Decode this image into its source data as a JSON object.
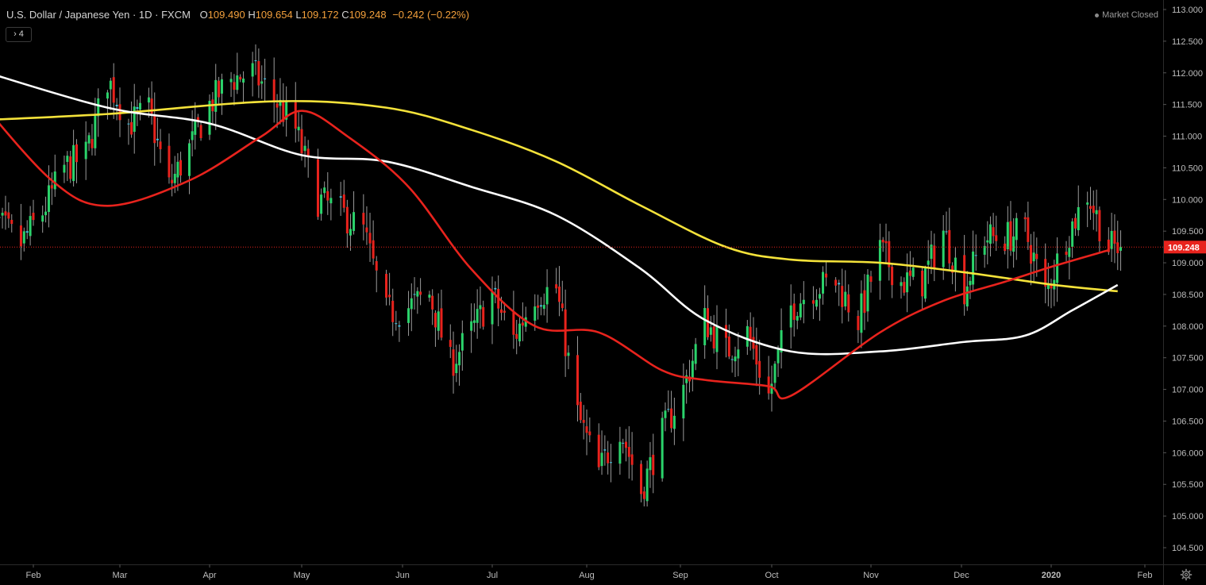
{
  "header": {
    "symbol": "U.S. Dollar / Japanese Yen · 1D · FXCM",
    "open_label": "O",
    "open": "109.490",
    "high_label": "H",
    "high": "109.654",
    "low_label": "L",
    "low": "109.172",
    "close_label": "C",
    "close": "109.248",
    "change": "−0.242 (−0.22%)",
    "collapse_label": "› 4",
    "market_status": "Market Closed"
  },
  "colors": {
    "background": "#000000",
    "up_candle": "#2bd36b",
    "down_candle": "#e8231d",
    "doji": "#3fc6e8",
    "ma_red": "#e8231d",
    "ma_white": "#ffffff",
    "ma_yellow": "#f4e23a",
    "price_line": "#e8231d",
    "accent": "#f3a03c"
  },
  "chart_data": {
    "type": "candlestick",
    "title": "U.S. Dollar / Japanese Yen · 1D · FXCM",
    "x_tick_labels": [
      "Feb",
      "Mar",
      "Apr",
      "May",
      "Jun",
      "Jul",
      "Aug",
      "Sep",
      "Oct",
      "Nov",
      "Dec",
      "2020",
      "Feb"
    ],
    "y_tick_labels": [
      "113.000",
      "112.500",
      "112.000",
      "111.500",
      "111.000",
      "110.500",
      "110.000",
      "109.500",
      "109.000",
      "108.500",
      "108.000",
      "107.500",
      "107.000",
      "106.500",
      "106.000",
      "105.500",
      "105.000",
      "104.500"
    ],
    "ylim": [
      104.5,
      113.0
    ],
    "last_price": "109.248",
    "series_anchors": {
      "close": [
        [
          "2019-01-21",
          109.6
        ],
        [
          "2019-01-28",
          109.3
        ],
        [
          "2019-02-04",
          109.8
        ],
        [
          "2019-02-11",
          110.5
        ],
        [
          "2019-02-18",
          110.7
        ],
        [
          "2019-02-25",
          111.9
        ],
        [
          "2019-03-04",
          111.2
        ],
        [
          "2019-03-11",
          111.4
        ],
        [
          "2019-03-18",
          110.2
        ],
        [
          "2019-03-25",
          110.8
        ],
        [
          "2019-04-01",
          111.5
        ],
        [
          "2019-04-08",
          111.9
        ],
        [
          "2019-04-15",
          112.0
        ],
        [
          "2019-04-22",
          111.6
        ],
        [
          "2019-04-29",
          111.1
        ],
        [
          "2019-05-06",
          110.0
        ],
        [
          "2019-05-13",
          109.8
        ],
        [
          "2019-05-20",
          109.5
        ],
        [
          "2019-05-27",
          108.2
        ],
        [
          "2019-06-03",
          108.3
        ],
        [
          "2019-06-10",
          108.5
        ],
        [
          "2019-06-17",
          107.4
        ],
        [
          "2019-06-24",
          107.9
        ],
        [
          "2019-07-01",
          108.5
        ],
        [
          "2019-07-08",
          107.8
        ],
        [
          "2019-07-15",
          108.5
        ],
        [
          "2019-07-22",
          108.6
        ],
        [
          "2019-07-29",
          106.6
        ],
        [
          "2019-08-05",
          105.7
        ],
        [
          "2019-08-12",
          106.4
        ],
        [
          "2019-08-19",
          105.4
        ],
        [
          "2019-08-26",
          106.3
        ],
        [
          "2019-09-02",
          107.0
        ],
        [
          "2019-09-09",
          108.1
        ],
        [
          "2019-09-16",
          107.6
        ],
        [
          "2019-09-23",
          107.9
        ],
        [
          "2019-09-30",
          106.9
        ],
        [
          "2019-10-07",
          108.3
        ],
        [
          "2019-10-14",
          108.6
        ],
        [
          "2019-10-21",
          108.7
        ],
        [
          "2019-10-28",
          108.1
        ],
        [
          "2019-11-04",
          109.2
        ],
        [
          "2019-11-11",
          108.7
        ],
        [
          "2019-11-18",
          108.7
        ],
        [
          "2019-11-25",
          109.5
        ],
        [
          "2019-12-02",
          108.6
        ],
        [
          "2019-12-09",
          109.4
        ],
        [
          "2019-12-16",
          109.4
        ],
        [
          "2019-12-23",
          109.5
        ],
        [
          "2019-12-30",
          108.5
        ],
        [
          "2020-01-06",
          109.4
        ],
        [
          "2020-01-13",
          110.1
        ],
        [
          "2020-01-20",
          109.25
        ]
      ],
      "ma_red": [
        [
          "2019-01-14",
          111.6
        ],
        [
          "2019-02-07",
          110.3
        ],
        [
          "2019-02-25",
          109.9
        ],
        [
          "2019-03-25",
          110.3
        ],
        [
          "2019-04-18",
          111.0
        ],
        [
          "2019-05-01",
          111.4
        ],
        [
          "2019-05-15",
          111.0
        ],
        [
          "2019-06-03",
          110.2
        ],
        [
          "2019-06-24",
          108.9
        ],
        [
          "2019-07-15",
          108.0
        ],
        [
          "2019-08-05",
          107.9
        ],
        [
          "2019-08-26",
          107.3
        ],
        [
          "2019-09-09",
          107.15
        ],
        [
          "2019-09-30",
          107.05
        ],
        [
          "2019-10-07",
          106.9
        ],
        [
          "2019-11-04",
          107.9
        ],
        [
          "2019-11-25",
          108.4
        ],
        [
          "2019-12-16",
          108.7
        ],
        [
          "2020-01-02",
          108.95
        ],
        [
          "2020-01-20",
          109.2
        ]
      ],
      "ma_white": [
        [
          "2019-01-14",
          112.05
        ],
        [
          "2019-02-25",
          111.45
        ],
        [
          "2019-04-01",
          111.2
        ],
        [
          "2019-05-01",
          110.7
        ],
        [
          "2019-05-27",
          110.6
        ],
        [
          "2019-06-24",
          110.2
        ],
        [
          "2019-07-22",
          109.75
        ],
        [
          "2019-08-19",
          108.9
        ],
        [
          "2019-09-09",
          108.1
        ],
        [
          "2019-10-07",
          107.6
        ],
        [
          "2019-11-04",
          107.6
        ],
        [
          "2019-12-02",
          107.75
        ],
        [
          "2019-12-23",
          107.85
        ],
        [
          "2020-01-08",
          108.25
        ],
        [
          "2020-01-23",
          108.65
        ]
      ],
      "ma_yellow": [
        [
          "2019-01-14",
          111.25
        ],
        [
          "2019-02-25",
          111.35
        ],
        [
          "2019-04-22",
          111.55
        ],
        [
          "2019-05-27",
          111.45
        ],
        [
          "2019-06-24",
          111.1
        ],
        [
          "2019-07-22",
          110.6
        ],
        [
          "2019-08-19",
          109.9
        ],
        [
          "2019-09-16",
          109.25
        ],
        [
          "2019-10-07",
          109.05
        ],
        [
          "2019-11-04",
          109.0
        ],
        [
          "2019-12-02",
          108.85
        ],
        [
          "2020-01-02",
          108.65
        ],
        [
          "2020-01-23",
          108.55
        ]
      ]
    }
  }
}
